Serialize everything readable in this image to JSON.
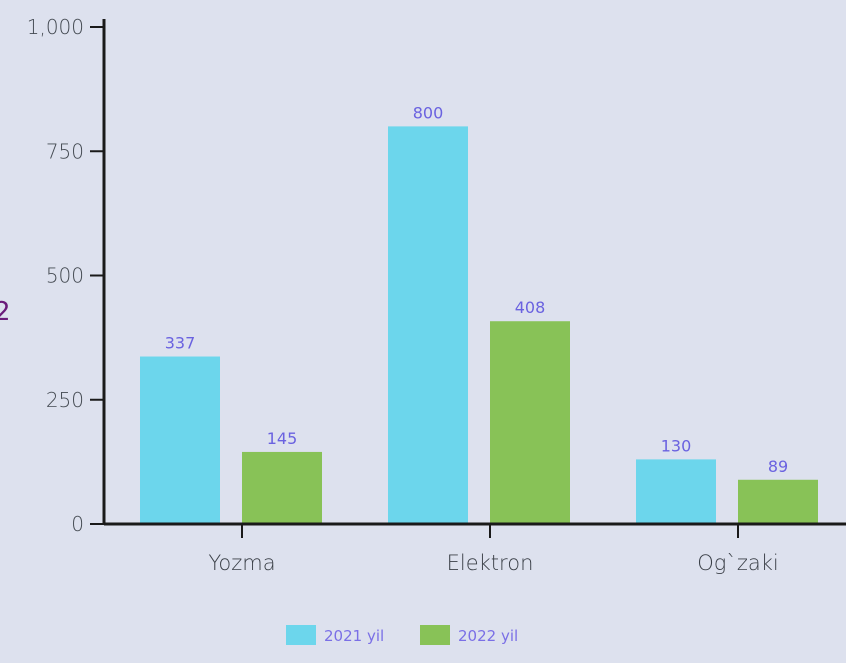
{
  "chart_data": {
    "type": "bar",
    "categories": [
      "Yozma",
      "Elektron",
      "Og`zaki"
    ],
    "series": [
      {
        "name": "2021 yil",
        "values": [
          337,
          800,
          130
        ],
        "color": "#6cd6ec"
      },
      {
        "name": "2022 yil",
        "values": [
          145,
          408,
          89
        ],
        "color": "#88c257"
      }
    ],
    "yticks": [
      0,
      250,
      500,
      750,
      1000
    ],
    "ytick_labels": [
      "0",
      "250",
      "500",
      "750",
      "1,000"
    ],
    "ylim": [
      0,
      1000
    ],
    "title": "",
    "xlabel": "",
    "ylabel": "",
    "legend_position": "bottom",
    "grid": false,
    "edge_char": "2",
    "axis_color": "#1a1a1a",
    "label_color": "#6a62e0"
  }
}
